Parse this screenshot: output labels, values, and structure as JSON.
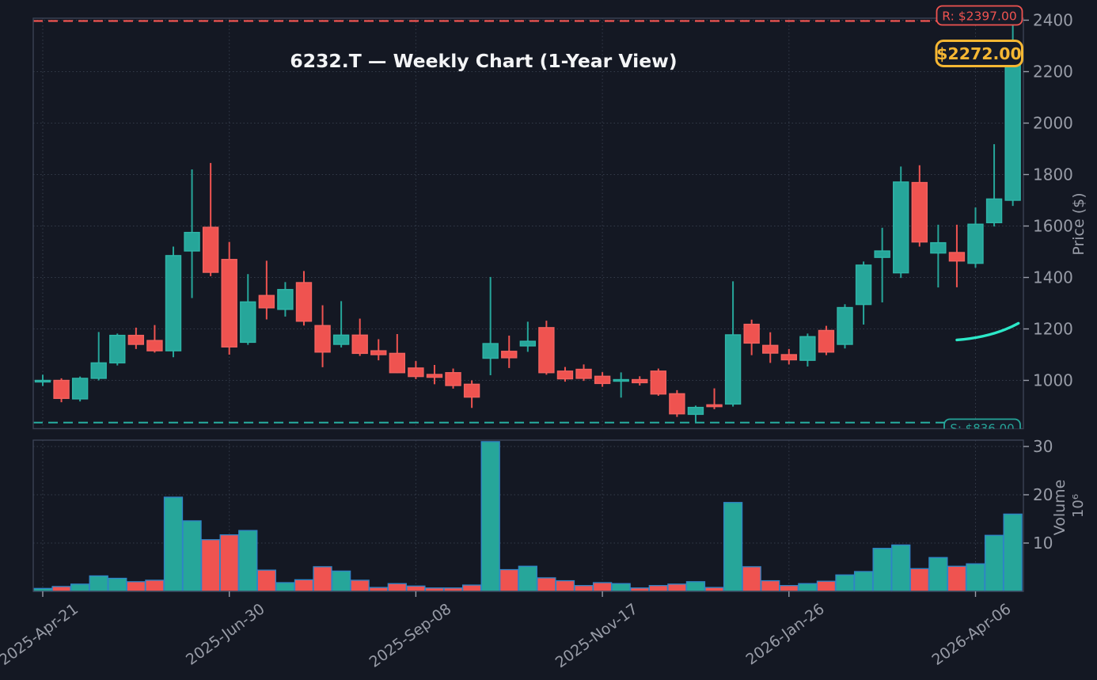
{
  "title": "6232.T — Weekly Chart (1-Year View)",
  "price_axis": {
    "label": "Price ($)",
    "ticks": [
      1000,
      1200,
      1400,
      1600,
      1800,
      2000,
      2200,
      2400
    ]
  },
  "volume_axis": {
    "label": "Volume",
    "multiplier": "10⁶",
    "ticks": [
      10,
      20,
      30
    ]
  },
  "x_axis": {
    "tick_labels": [
      {
        "index": 0,
        "label": "2025-Apr-21"
      },
      {
        "index": 10,
        "label": "2025-Jun-30"
      },
      {
        "index": 20,
        "label": "2025-Sep-08"
      },
      {
        "index": 30,
        "label": "2025-Nov-17"
      },
      {
        "index": 40,
        "label": "2026-Jan-26"
      },
      {
        "index": 50,
        "label": "2026-Apr-06"
      }
    ]
  },
  "overlays": {
    "resistance": {
      "label": "R: $2397.00",
      "value": 2397,
      "color": "#ef5350"
    },
    "support": {
      "label": "S: $836.00",
      "value": 836,
      "color": "#26a69a"
    },
    "last_price": {
      "label": "$2272.00",
      "value": 2272,
      "color": "#f6b733"
    },
    "ma_curve": {
      "color": "#2ce8c8",
      "points": [
        [
          49.0,
          1157
        ],
        [
          50.2,
          1164
        ],
        [
          51.3,
          1182
        ],
        [
          52.3,
          1222
        ]
      ]
    }
  },
  "colors": {
    "background": "#141823",
    "up": "#26a69a",
    "up_stroke": "#2fb5a8",
    "down": "#ef5350",
    "down_stroke": "#f2625f",
    "volume_border": "#2f84c7",
    "grid": "#343b4a",
    "spine": "#3b4254",
    "tick_text": "#989ca7",
    "title_text": "#f3f4f6",
    "label_bg": "#161b28"
  },
  "chart_data": {
    "type": "candlestick_with_volume",
    "timeframe": "weekly",
    "symbol": "6232.T",
    "price_ylim": [
      810,
      2410
    ],
    "volume_ylim": [
      0,
      32
    ],
    "columns": [
      "open",
      "high",
      "low",
      "close",
      "volume_millions"
    ],
    "candles": [
      [
        1000,
        1022,
        978,
        1000,
        0.6
      ],
      [
        1000,
        1008,
        915,
        930,
        1.0
      ],
      [
        928,
        1015,
        918,
        1008,
        1.5
      ],
      [
        1008,
        1188,
        1000,
        1068,
        3.2
      ],
      [
        1068,
        1182,
        1058,
        1175,
        2.7
      ],
      [
        1175,
        1205,
        1122,
        1140,
        2.0
      ],
      [
        1155,
        1215,
        1108,
        1115,
        2.3
      ],
      [
        1115,
        1520,
        1090,
        1485,
        19.5
      ],
      [
        1503,
        1820,
        1320,
        1575,
        14.6
      ],
      [
        1595,
        1845,
        1405,
        1420,
        10.7
      ],
      [
        1470,
        1538,
        1100,
        1130,
        11.7
      ],
      [
        1148,
        1413,
        1138,
        1305,
        12.6
      ],
      [
        1330,
        1465,
        1237,
        1282,
        4.4
      ],
      [
        1276,
        1382,
        1248,
        1353,
        1.8
      ],
      [
        1380,
        1425,
        1213,
        1230,
        2.4
      ],
      [
        1213,
        1292,
        1051,
        1110,
        5.1
      ],
      [
        1140,
        1308,
        1128,
        1176,
        4.2
      ],
      [
        1176,
        1240,
        1095,
        1105,
        2.3
      ],
      [
        1115,
        1160,
        1078,
        1100,
        0.8
      ],
      [
        1105,
        1180,
        1028,
        1030,
        1.6
      ],
      [
        1048,
        1075,
        1005,
        1015,
        1.1
      ],
      [
        1023,
        1060,
        985,
        1012,
        0.7
      ],
      [
        1030,
        1046,
        968,
        980,
        0.7
      ],
      [
        985,
        1000,
        893,
        935,
        1.3
      ],
      [
        1086,
        1402,
        1020,
        1143,
        31.0
      ],
      [
        1113,
        1174,
        1048,
        1088,
        4.5
      ],
      [
        1134,
        1228,
        1111,
        1152,
        5.2
      ],
      [
        1205,
        1232,
        1022,
        1030,
        2.8
      ],
      [
        1036,
        1052,
        995,
        1006,
        2.2
      ],
      [
        1043,
        1062,
        998,
        1008,
        1.2
      ],
      [
        1016,
        1032,
        975,
        988,
        1.8
      ],
      [
        1000,
        1031,
        933,
        1003,
        1.6
      ],
      [
        1003,
        1016,
        980,
        991,
        0.7
      ],
      [
        1036,
        1046,
        940,
        947,
        1.2
      ],
      [
        948,
        962,
        858,
        870,
        1.5
      ],
      [
        868,
        902,
        836,
        895,
        2.0
      ],
      [
        905,
        969,
        888,
        898,
        0.8
      ],
      [
        908,
        1385,
        898,
        1177,
        18.4
      ],
      [
        1218,
        1236,
        1098,
        1145,
        5.1
      ],
      [
        1136,
        1187,
        1068,
        1106,
        2.2
      ],
      [
        1100,
        1122,
        1062,
        1080,
        1.2
      ],
      [
        1078,
        1182,
        1054,
        1170,
        1.6
      ],
      [
        1194,
        1212,
        1098,
        1110,
        2.1
      ],
      [
        1140,
        1296,
        1124,
        1283,
        3.4
      ],
      [
        1295,
        1462,
        1217,
        1448,
        4.1
      ],
      [
        1478,
        1593,
        1303,
        1503,
        8.9
      ],
      [
        1418,
        1831,
        1398,
        1771,
        9.6
      ],
      [
        1769,
        1836,
        1520,
        1538,
        4.7
      ],
      [
        1495,
        1605,
        1361,
        1535,
        7.0
      ],
      [
        1497,
        1605,
        1362,
        1464,
        5.2
      ],
      [
        1455,
        1672,
        1438,
        1607,
        5.7
      ],
      [
        1613,
        1918,
        1598,
        1705,
        11.6
      ],
      [
        1700,
        2380,
        1678,
        2272,
        16.0
      ]
    ]
  }
}
